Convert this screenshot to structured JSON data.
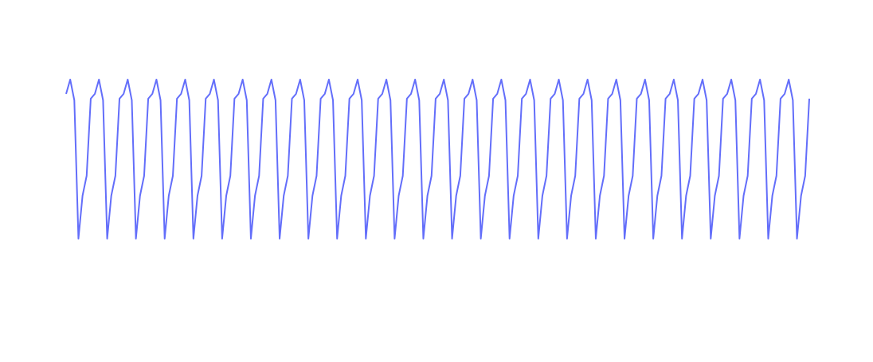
{
  "chart_data": {
    "type": "line",
    "x": [
      0,
      1,
      2,
      3,
      4,
      5,
      6,
      7,
      8,
      9,
      10,
      11,
      12,
      13,
      14,
      15,
      16,
      17,
      18,
      19,
      20,
      21,
      22,
      23,
      24,
      25,
      26,
      27,
      28,
      29,
      30,
      31,
      32,
      33,
      34,
      35,
      36,
      37,
      38,
      39,
      40,
      41,
      42,
      43,
      44,
      45,
      46,
      47,
      48,
      49,
      50,
      51,
      52,
      53,
      54,
      55,
      56,
      57,
      58,
      59,
      60,
      61,
      62,
      63,
      64,
      65,
      66,
      67,
      68,
      69,
      70,
      71,
      72,
      73,
      74,
      75,
      76,
      77,
      78,
      79,
      80,
      81,
      82,
      83,
      84,
      85,
      86,
      87,
      88,
      89,
      90,
      91,
      92,
      93,
      94,
      95,
      96,
      97,
      98,
      99,
      100,
      101,
      102,
      103,
      104,
      105,
      106,
      107,
      108,
      109,
      110,
      111,
      112,
      113,
      114,
      115,
      116,
      117,
      118,
      119,
      120,
      121,
      122,
      123,
      124,
      125,
      126,
      127,
      128,
      129,
      130,
      131,
      132,
      133,
      134,
      135,
      136,
      137,
      138,
      139,
      140,
      141,
      142,
      143,
      144,
      145,
      146,
      147,
      148,
      149,
      150,
      151,
      152,
      153,
      154,
      155,
      156,
      157,
      158,
      159,
      160,
      161,
      162,
      163,
      164,
      165,
      166,
      167,
      168,
      169,
      170,
      171,
      172,
      173,
      174,
      175,
      176,
      177,
      178,
      179,
      180,
      181
    ],
    "series": [
      {
        "color": "#636efa",
        "values": [
          0.91,
          1,
          0.87,
          0,
          0.27,
          0.395,
          0.88,
          0.91,
          1,
          0.87,
          0,
          0.27,
          0.395,
          0.88,
          0.91,
          1,
          0.87,
          0,
          0.27,
          0.395,
          0.88,
          0.91,
          1,
          0.87,
          0,
          0.27,
          0.395,
          0.88,
          0.91,
          1,
          0.87,
          0,
          0.27,
          0.395,
          0.88,
          0.91,
          1,
          0.87,
          0,
          0.27,
          0.395,
          0.88,
          0.91,
          1,
          0.87,
          0,
          0.27,
          0.395,
          0.88,
          0.91,
          1,
          0.87,
          0,
          0.27,
          0.395,
          0.88,
          0.91,
          1,
          0.87,
          0,
          0.27,
          0.395,
          0.88,
          0.91,
          1,
          0.87,
          0,
          0.27,
          0.395,
          0.88,
          0.91,
          1,
          0.87,
          0,
          0.27,
          0.395,
          0.88,
          0.91,
          1,
          0.87,
          0,
          0.27,
          0.395,
          0.88,
          0.91,
          1,
          0.87,
          0,
          0.27,
          0.395,
          0.88,
          0.91,
          1,
          0.87,
          0,
          0.27,
          0.395,
          0.88,
          0.91,
          1,
          0.87,
          0,
          0.27,
          0.395,
          0.88,
          0.91,
          1,
          0.87,
          0,
          0.27,
          0.395,
          0.88,
          0.91,
          1,
          0.87,
          0,
          0.27,
          0.395,
          0.88,
          0.91,
          1,
          0.87,
          0,
          0.27,
          0.395,
          0.88,
          0.91,
          1,
          0.87,
          0,
          0.27,
          0.395,
          0.88,
          0.91,
          1,
          0.87,
          0,
          0.27,
          0.395,
          0.88,
          0.91,
          1,
          0.87,
          0,
          0.27,
          0.395,
          0.88,
          0.91,
          1,
          0.87,
          0,
          0.27,
          0.395,
          0.88,
          0.91,
          1,
          0.87,
          0,
          0.27,
          0.395,
          0.88,
          0.91,
          1,
          0.87,
          0,
          0.27,
          0.395,
          0.88,
          0.91,
          1,
          0.87,
          0,
          0.27,
          0.395,
          0.88,
          0.91,
          1,
          0.87,
          0,
          0.27,
          0.395,
          0.88
        ]
      }
    ],
    "xlim": [
      0,
      181
    ],
    "ylim": [
      0,
      1
    ]
  }
}
